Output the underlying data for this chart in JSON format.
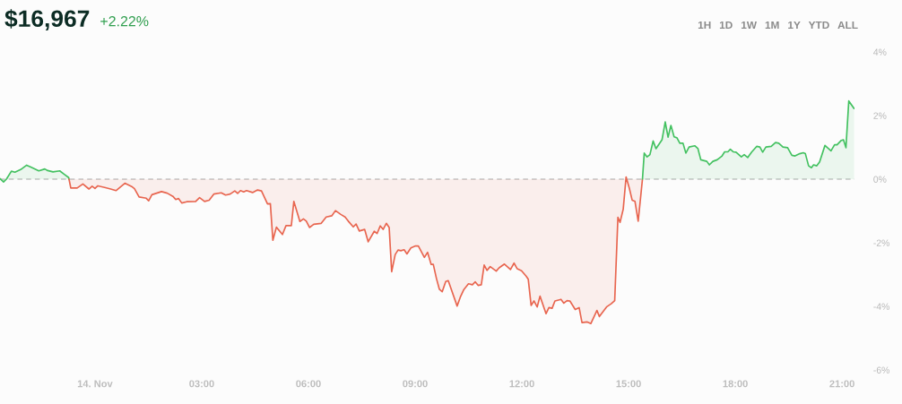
{
  "chart_data": {
    "type": "area",
    "title": "$16,967",
    "subtitle": "+2.22%",
    "annotations": [
      "1H",
      "1D",
      "1W",
      "1M",
      "1Y",
      "YTD",
      "ALL"
    ],
    "xlim": [
      -2.67,
      21.35
    ],
    "xticks": [
      {
        "value": 0,
        "label": "14. Nov"
      },
      {
        "value": 3,
        "label": "03:00"
      },
      {
        "value": 6,
        "label": "06:00"
      },
      {
        "value": 9,
        "label": "09:00"
      },
      {
        "value": 12,
        "label": "12:00"
      },
      {
        "value": 15,
        "label": "15:00"
      },
      {
        "value": 18,
        "label": "18:00"
      },
      {
        "value": 21,
        "label": "21:00"
      }
    ],
    "ylim": [
      -6,
      4
    ],
    "yticks": [
      {
        "value": 4,
        "label": "4%"
      },
      {
        "value": 2,
        "label": "2%"
      },
      {
        "value": 0,
        "label": "0%"
      },
      {
        "value": -2,
        "label": "-2%"
      },
      {
        "value": -4,
        "label": "-4%"
      },
      {
        "value": -6,
        "label": "-6%"
      }
    ],
    "grid": false,
    "line_style": "solid",
    "ref_lines": [
      {
        "axis": "y",
        "value": 0,
        "color": "#c4c4c4",
        "line_style": "dashed"
      }
    ],
    "series": [
      {
        "color": "#43c160",
        "x": [
          -2.67,
          -2.57,
          -2.49,
          -2.35,
          -2.25,
          -2.09,
          -1.92,
          -1.79,
          -1.58,
          -1.41,
          -1.33,
          -1.18,
          -0.99,
          -0.87,
          -0.74,
          -0.73
        ],
        "values": [
          0.02,
          -0.09,
          0.0,
          0.25,
          0.22,
          0.3,
          0.44,
          0.37,
          0.26,
          0.32,
          0.27,
          0.23,
          0.26,
          0.16,
          0.05,
          0.0
        ]
      },
      {
        "color": "#e8654f",
        "x": [
          -0.73,
          -0.68,
          -0.5,
          -0.34,
          -0.17,
          -0.08,
          0.0,
          0.08,
          0.27,
          0.44,
          0.59,
          0.84,
          1.03,
          1.11,
          1.24,
          1.44,
          1.51,
          1.6,
          1.87,
          2.03,
          2.19,
          2.27,
          2.35,
          2.44,
          2.58,
          2.83,
          2.94,
          3.08,
          3.21,
          3.34,
          3.55,
          3.67,
          3.8,
          3.93,
          4.01,
          4.09,
          4.18,
          4.26,
          4.43,
          4.57,
          4.68,
          4.85,
          4.93,
          5.0,
          5.1,
          5.27,
          5.37,
          5.52,
          5.59,
          5.76,
          5.86,
          5.94,
          6.03,
          6.15,
          6.36,
          6.5,
          6.66,
          6.76,
          6.91,
          7.03,
          7.12,
          7.26,
          7.34,
          7.43,
          7.58,
          7.68,
          7.85,
          7.93,
          8.02,
          8.1,
          8.19,
          8.27,
          8.34,
          8.44,
          8.52,
          8.6,
          8.69,
          8.77,
          8.88,
          9.01,
          9.09,
          9.26,
          9.35,
          9.45,
          9.51,
          9.6,
          9.68,
          9.76,
          9.86,
          9.93,
          10.18,
          10.27,
          10.37,
          10.5,
          10.61,
          10.69,
          10.77,
          10.86,
          10.94,
          11.02,
          11.11,
          11.28,
          11.36,
          11.51,
          11.68,
          11.78,
          11.87,
          11.99,
          12.12,
          12.18,
          12.26,
          12.34,
          12.43,
          12.51,
          12.68,
          12.76,
          12.85,
          12.93,
          13.1,
          13.18,
          13.27,
          13.35,
          13.5,
          13.61,
          13.69,
          13.84,
          13.94,
          14.11,
          14.18,
          14.39,
          14.51,
          14.61,
          14.7,
          14.76,
          14.85,
          14.93,
          15.02,
          15.1,
          15.18,
          15.27,
          15.39
        ],
        "values": [
          0.0,
          -0.28,
          -0.28,
          -0.15,
          -0.31,
          -0.22,
          -0.29,
          -0.21,
          -0.26,
          -0.31,
          -0.36,
          -0.13,
          -0.23,
          -0.3,
          -0.56,
          -0.6,
          -0.68,
          -0.49,
          -0.39,
          -0.44,
          -0.54,
          -0.64,
          -0.61,
          -0.75,
          -0.71,
          -0.7,
          -0.58,
          -0.7,
          -0.66,
          -0.47,
          -0.43,
          -0.5,
          -0.47,
          -0.37,
          -0.45,
          -0.36,
          -0.4,
          -0.36,
          -0.42,
          -0.34,
          -0.37,
          -0.78,
          -0.77,
          -1.92,
          -1.51,
          -1.74,
          -1.46,
          -1.46,
          -0.7,
          -1.33,
          -1.25,
          -1.32,
          -1.52,
          -1.42,
          -1.39,
          -1.19,
          -1.15,
          -0.99,
          -1.11,
          -1.19,
          -1.32,
          -1.5,
          -1.41,
          -1.63,
          -1.58,
          -1.97,
          -1.64,
          -1.71,
          -1.47,
          -1.58,
          -1.39,
          -1.52,
          -2.91,
          -2.37,
          -2.23,
          -2.25,
          -2.22,
          -2.35,
          -2.16,
          -2.1,
          -2.1,
          -2.46,
          -2.3,
          -2.68,
          -2.68,
          -3.13,
          -3.46,
          -3.54,
          -3.22,
          -3.19,
          -3.99,
          -3.71,
          -3.47,
          -3.29,
          -3.32,
          -3.23,
          -3.34,
          -3.32,
          -2.7,
          -2.87,
          -2.75,
          -2.89,
          -2.79,
          -2.67,
          -2.84,
          -2.64,
          -2.82,
          -2.88,
          -3.05,
          -3.15,
          -3.97,
          -3.83,
          -4.02,
          -3.68,
          -4.23,
          -4.04,
          -4.06,
          -3.83,
          -3.78,
          -3.9,
          -3.82,
          -3.83,
          -4.1,
          -4.04,
          -4.51,
          -4.49,
          -4.54,
          -4.13,
          -4.32,
          -4.01,
          -3.92,
          -3.82,
          -1.2,
          -1.36,
          -0.94,
          0.07,
          -0.28,
          -0.66,
          -0.7,
          -1.32,
          0.0
        ]
      },
      {
        "color": "#43c160",
        "x": [
          15.39,
          15.44,
          15.52,
          15.6,
          15.69,
          15.77,
          15.94,
          16.03,
          16.11,
          16.19,
          16.28,
          16.36,
          16.44,
          16.53,
          16.61,
          16.7,
          16.86,
          16.95,
          17.03,
          17.2,
          17.27,
          17.37,
          17.49,
          17.62,
          17.7,
          17.79,
          17.86,
          17.94,
          18.02,
          18.17,
          18.25,
          18.35,
          18.46,
          18.6,
          18.69,
          18.77,
          18.86,
          19.01,
          19.13,
          19.22,
          19.34,
          19.47,
          19.59,
          19.68,
          19.81,
          19.91,
          19.97,
          20.06,
          20.14,
          20.2,
          20.29,
          20.37,
          20.52,
          20.69,
          20.79,
          20.86,
          20.98,
          21.04,
          21.11,
          21.19,
          21.34
        ],
        "values": [
          0.0,
          0.82,
          0.7,
          0.77,
          1.2,
          0.96,
          1.24,
          1.8,
          1.32,
          1.69,
          1.33,
          1.3,
          1.13,
          1.13,
          0.82,
          1.01,
          1.05,
          0.96,
          0.61,
          0.56,
          0.45,
          0.56,
          0.61,
          0.72,
          0.86,
          0.86,
          0.94,
          0.86,
          0.85,
          0.7,
          0.77,
          0.68,
          0.85,
          1.03,
          1.01,
          0.85,
          1.01,
          1.03,
          1.15,
          1.13,
          1.01,
          0.99,
          0.75,
          0.73,
          0.8,
          0.83,
          0.8,
          0.42,
          0.36,
          0.45,
          0.42,
          0.54,
          1.06,
          0.89,
          1.08,
          1.08,
          1.22,
          1.24,
          0.99,
          2.46,
          2.22
        ]
      }
    ]
  }
}
